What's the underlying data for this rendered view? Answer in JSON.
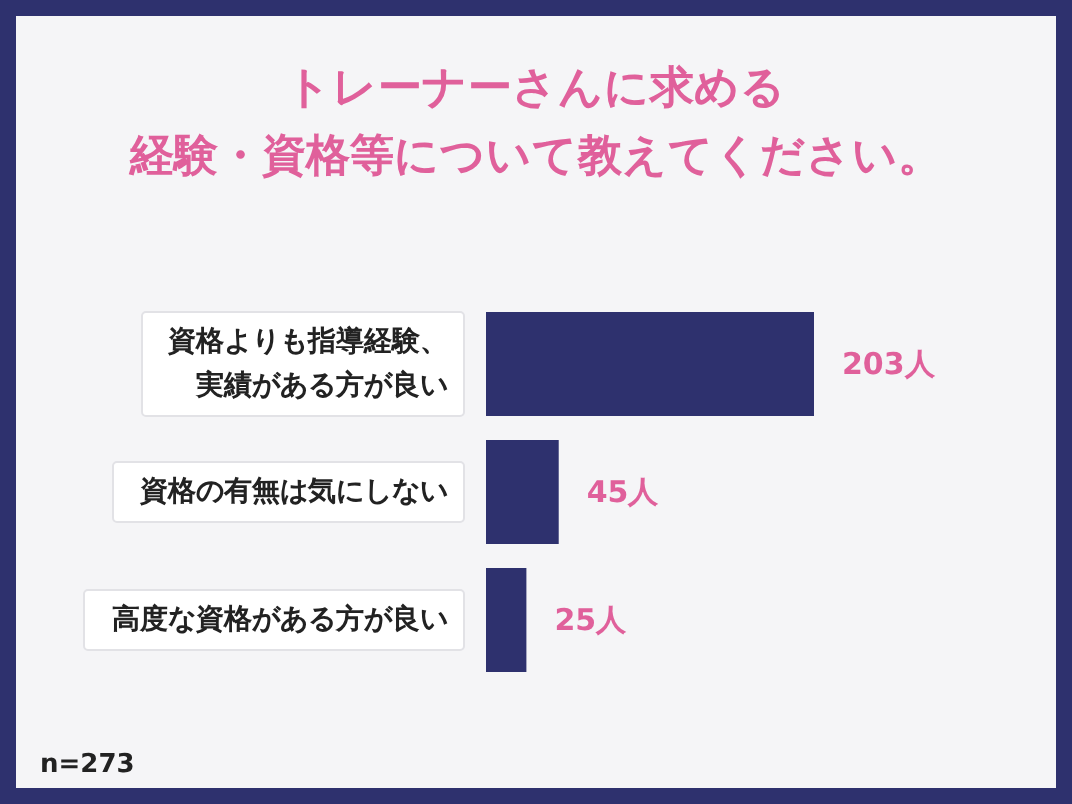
{
  "chart_data": {
    "type": "bar",
    "orientation": "horizontal",
    "title": "トレーナーさんに求める経験・資格等について教えてください。",
    "categories": [
      "資格よりも指導経験、実績がある方が良い",
      "資格の有無は気にしない",
      "高度な資格がある方が良い"
    ],
    "values": [
      203,
      45,
      25
    ],
    "color": "#2e316e",
    "value_labels": [
      "203人",
      "45人",
      "25人"
    ],
    "annotations": [
      "n=273"
    ]
  }
}
